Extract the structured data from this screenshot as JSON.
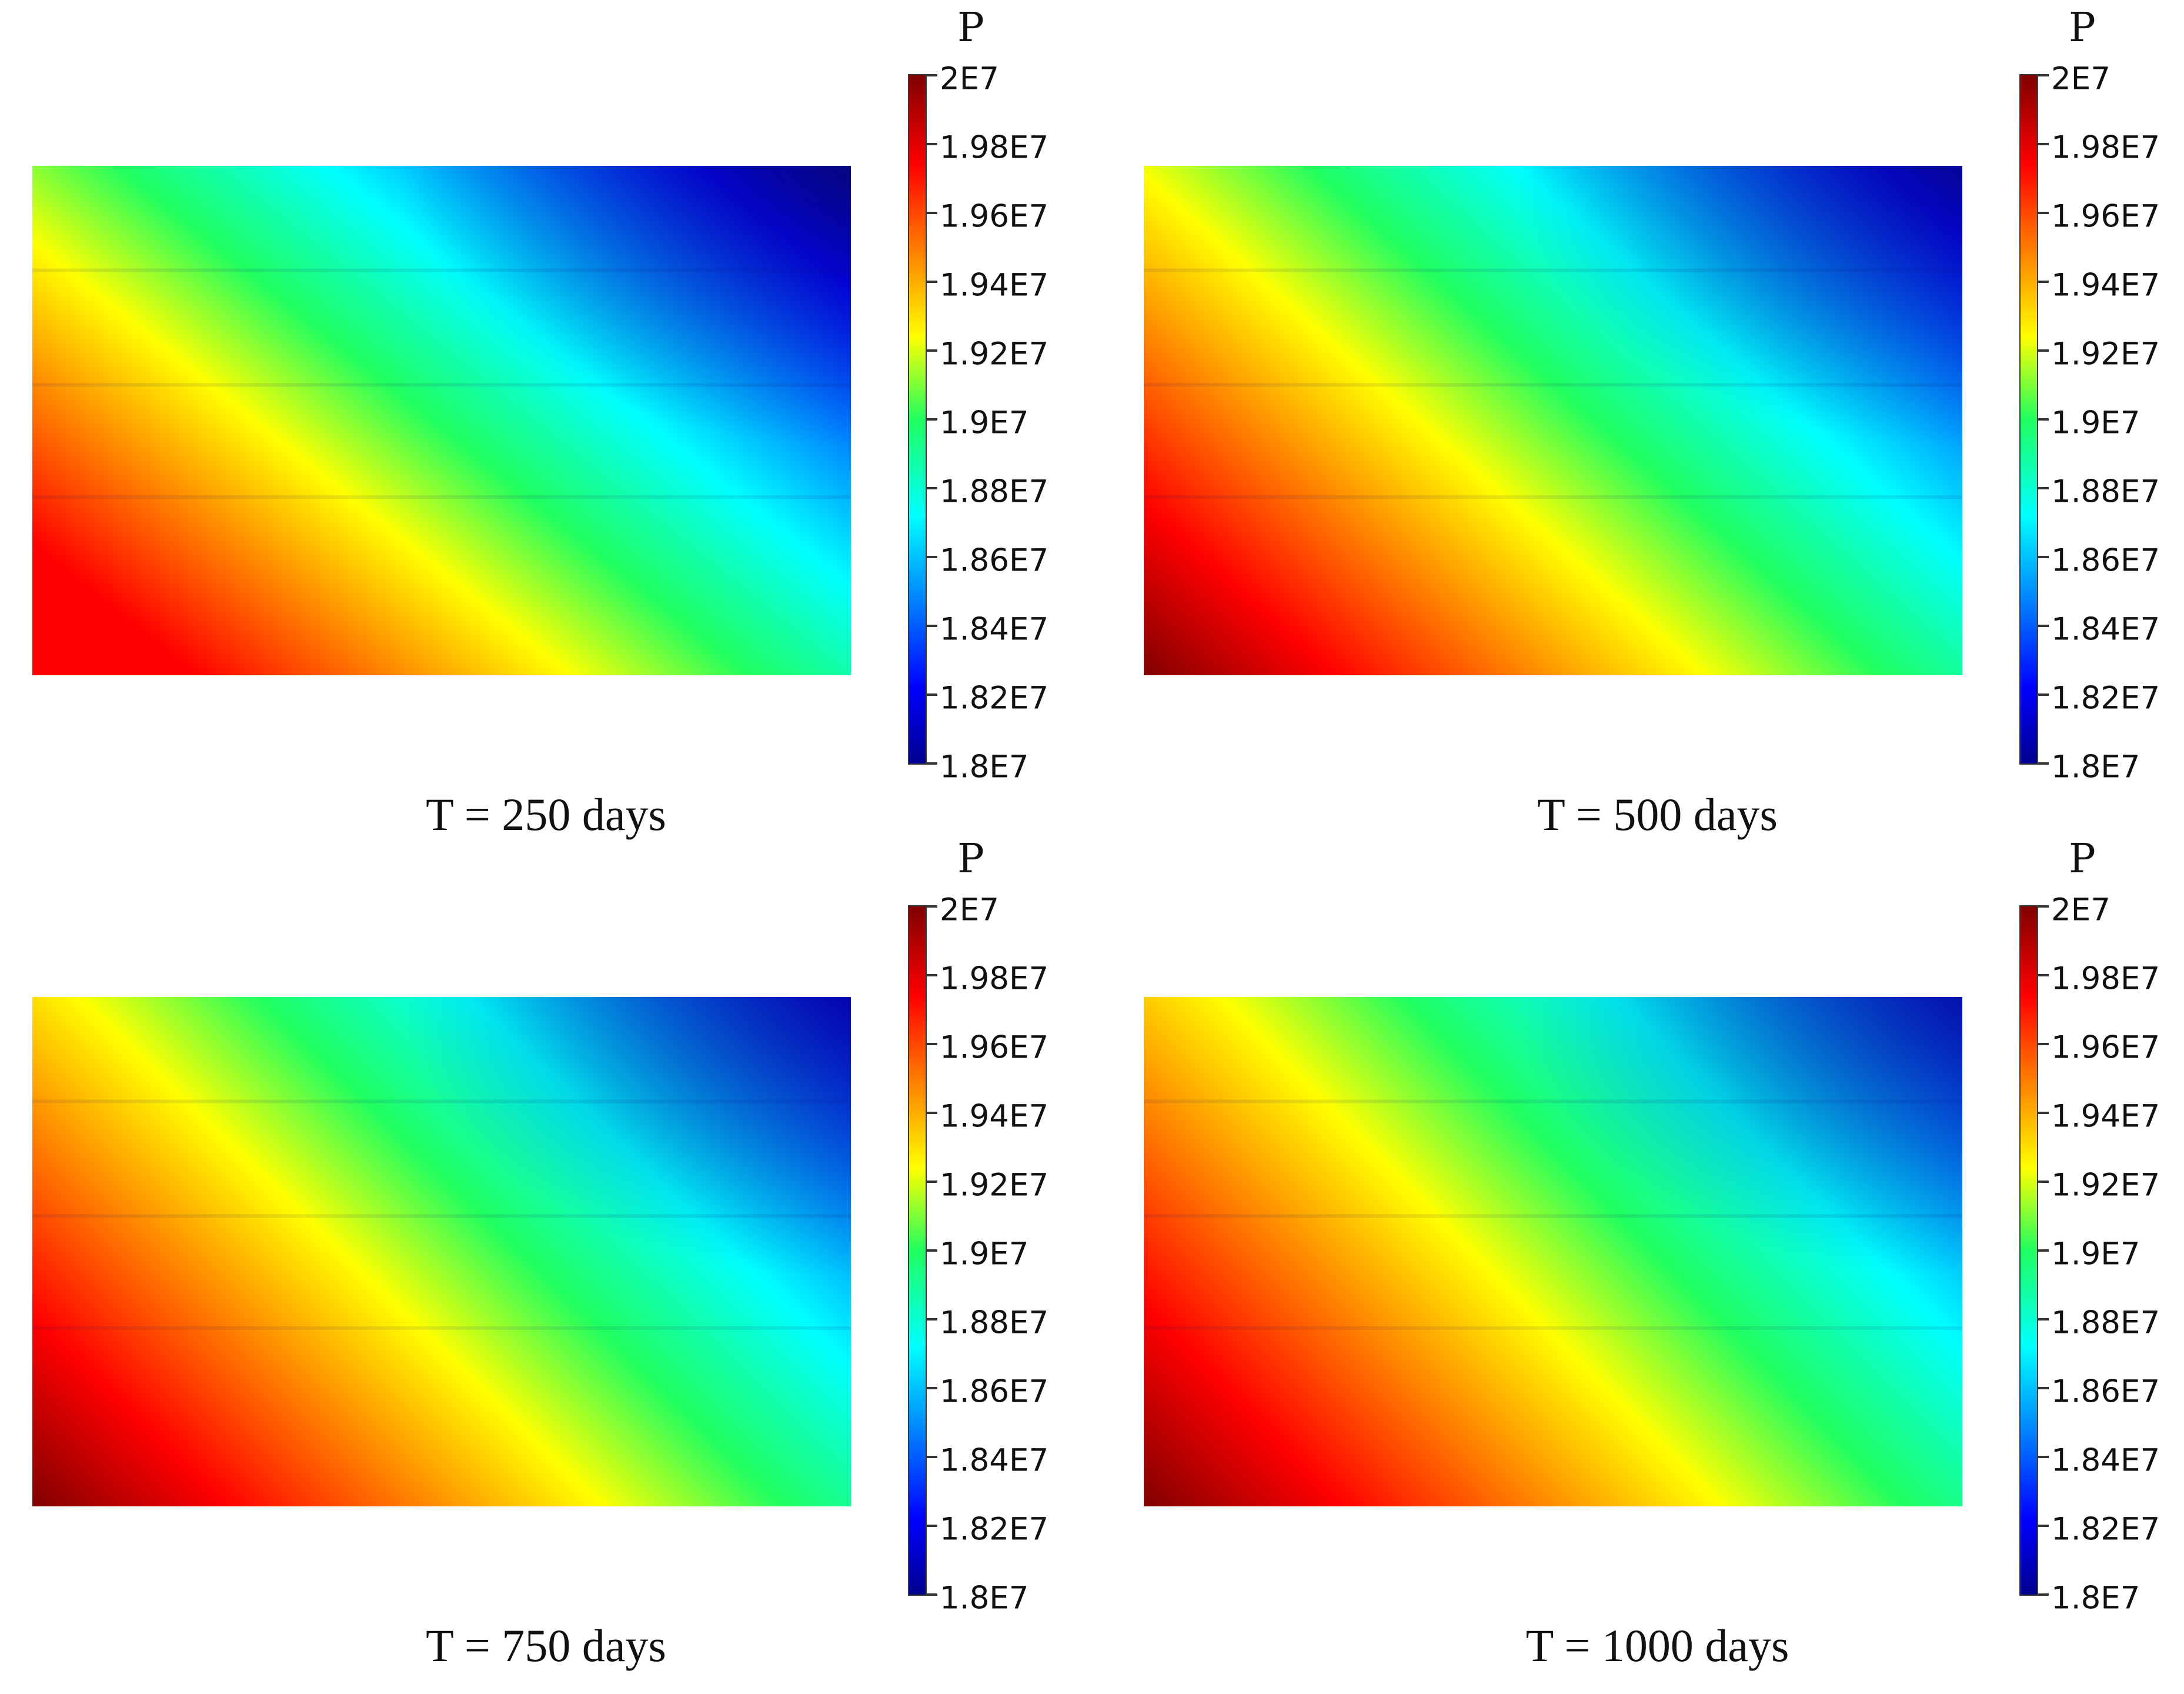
{
  "chart_data": [
    {
      "type": "heatmap",
      "caption": "T = 250 days",
      "colorbar": {
        "title": "P",
        "min": 18000000,
        "max": 20000000,
        "ticks": [
          "2E7",
          "1.98E7",
          "1.96E7",
          "1.94E7",
          "1.92E7",
          "1.9E7",
          "1.88E7",
          "1.86E7",
          "1.84E7",
          "1.82E7",
          "1.8E7"
        ],
        "colormap": "jet"
      },
      "field": {
        "layer_boundaries": [
          0.205,
          0.43,
          0.65
        ],
        "max_pressure_corner": "bottom-left",
        "min_pressure_corner": "top-right",
        "bottom_left_value": 19960000,
        "front_extent": 0.28
      }
    },
    {
      "type": "heatmap",
      "caption": "T = 500 days",
      "colorbar": {
        "title": "P",
        "min": 18000000,
        "max": 20000000,
        "ticks": [
          "2E7",
          "1.98E7",
          "1.96E7",
          "1.94E7",
          "1.92E7",
          "1.9E7",
          "1.88E7",
          "1.86E7",
          "1.84E7",
          "1.82E7",
          "1.8E7"
        ],
        "colormap": "jet"
      },
      "field": {
        "layer_boundaries": [
          0.205,
          0.43,
          0.65
        ],
        "max_pressure_corner": "bottom-left",
        "min_pressure_corner": "top-right",
        "bottom_left_value": 20000000,
        "front_extent": 0.45
      }
    },
    {
      "type": "heatmap",
      "caption": "T = 750 days",
      "colorbar": {
        "title": "P",
        "min": 18000000,
        "max": 20000000,
        "ticks": [
          "2E7",
          "1.98E7",
          "1.96E7",
          "1.94E7",
          "1.92E7",
          "1.9E7",
          "1.88E7",
          "1.86E7",
          "1.84E7",
          "1.82E7",
          "1.8E7"
        ],
        "colormap": "jet"
      },
      "field": {
        "layer_boundaries": [
          0.205,
          0.43,
          0.65
        ],
        "max_pressure_corner": "bottom-left",
        "min_pressure_corner": "top-right",
        "bottom_left_value": 20000000,
        "front_extent": 0.62
      }
    },
    {
      "type": "heatmap",
      "caption": "T = 1000 days",
      "colorbar": {
        "title": "P",
        "min": 18000000,
        "max": 20000000,
        "ticks": [
          "2E7",
          "1.98E7",
          "1.96E7",
          "1.94E7",
          "1.92E7",
          "1.9E7",
          "1.88E7",
          "1.86E7",
          "1.84E7",
          "1.82E7",
          "1.8E7"
        ],
        "colormap": "jet"
      },
      "field": {
        "layer_boundaries": [
          0.205,
          0.43,
          0.65
        ],
        "max_pressure_corner": "bottom-left",
        "min_pressure_corner": "top-right",
        "bottom_left_value": 20000000,
        "front_extent": 0.72
      }
    }
  ]
}
